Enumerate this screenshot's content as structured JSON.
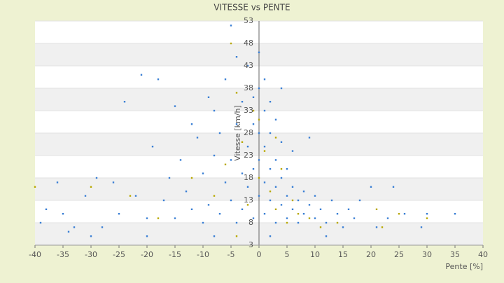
{
  "chart_data": {
    "type": "scatter",
    "title": "VITESSE vs PENTE",
    "x_label": "Pente [%]",
    "y_label": "Vitesse [km/h]",
    "xlim": [
      -40,
      40
    ],
    "xticks": [
      -40,
      -35,
      -30,
      -25,
      -20,
      -15,
      -10,
      -5,
      0,
      5,
      10,
      15,
      20,
      25,
      30,
      35,
      40
    ],
    "ylim": [
      3,
      53
    ],
    "yticks": [
      3,
      8,
      13,
      18,
      23,
      28,
      33,
      38,
      43,
      48,
      53
    ],
    "grid": true,
    "series": [
      {
        "color": "#3a7fd5",
        "x": [
          -39,
          -38,
          -36,
          -34,
          -33,
          -31,
          -29,
          -28,
          -26,
          -25,
          -24,
          -22,
          -21,
          -20,
          -19,
          -18,
          -17,
          -16,
          -15,
          -15,
          -14,
          -13,
          -12,
          -12,
          -11,
          -10,
          -10,
          -9,
          -9,
          -8,
          -8,
          -7,
          -7,
          -6,
          -6,
          -5,
          -5,
          -5,
          -4,
          -4,
          -4,
          -3,
          -3,
          -3,
          -2,
          -2,
          -2,
          -1,
          -1,
          -1,
          0,
          0,
          0,
          0,
          0,
          1,
          1,
          1,
          1,
          2,
          2,
          2,
          3,
          3,
          3,
          3,
          4,
          4,
          4,
          5,
          5,
          5,
          6,
          6,
          6,
          7,
          7,
          8,
          8,
          9,
          9,
          10,
          10,
          11,
          12,
          13,
          14,
          15,
          16,
          17,
          18,
          20,
          21,
          23,
          24,
          26,
          29,
          30,
          35,
          -35,
          -30,
          -20,
          -8,
          2,
          12,
          4,
          1,
          -1,
          2
        ],
        "y": [
          8,
          11,
          17,
          6,
          7,
          14,
          18,
          7,
          17,
          10,
          35,
          14,
          41,
          9,
          25,
          40,
          13,
          18,
          9,
          34,
          22,
          15,
          11,
          30,
          27,
          8,
          19,
          36,
          12,
          23,
          33,
          10,
          28,
          17,
          40,
          52,
          22,
          13,
          8,
          30,
          45,
          19,
          35,
          11,
          25,
          43,
          16,
          30,
          20,
          9,
          28,
          38,
          14,
          22,
          46,
          25,
          17,
          33,
          10,
          20,
          28,
          13,
          22,
          16,
          31,
          8,
          18,
          12,
          26,
          14,
          20,
          9,
          16,
          11,
          24,
          13,
          8,
          15,
          10,
          12,
          27,
          9,
          14,
          11,
          8,
          13,
          10,
          7,
          11,
          9,
          13,
          16,
          7,
          9,
          16,
          10,
          7,
          10,
          10,
          10,
          5,
          5,
          5,
          5,
          5,
          38,
          40,
          36,
          35
        ]
      },
      {
        "color": "#b8a800",
        "x": [
          -40,
          -30,
          -23,
          -18,
          -12,
          -8,
          -6,
          -4,
          -3,
          -2,
          -1,
          0,
          1,
          2,
          3,
          4,
          5,
          6,
          7,
          9,
          11,
          14,
          21,
          22,
          25,
          30,
          -5,
          -4,
          0,
          3
        ],
        "y": [
          16,
          16,
          14,
          9,
          18,
          14,
          21,
          37,
          26,
          12,
          33,
          18,
          24,
          15,
          11,
          20,
          8,
          13,
          10,
          9,
          7,
          8,
          11,
          7,
          10,
          9,
          48,
          5,
          31,
          27
        ]
      }
    ]
  }
}
